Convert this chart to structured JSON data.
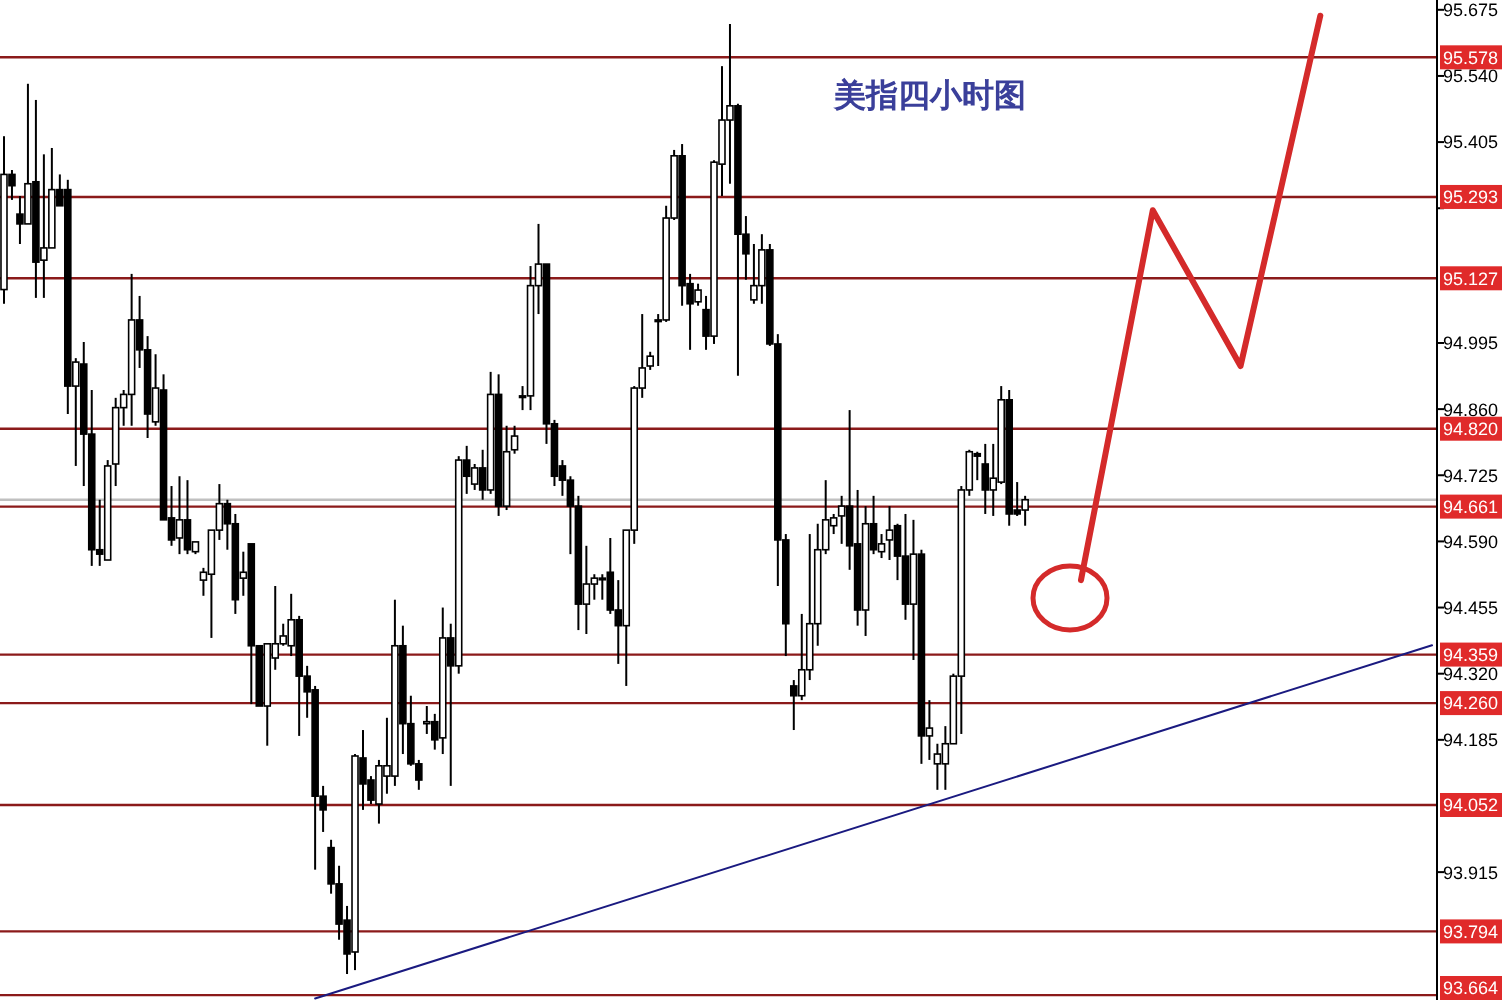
{
  "chart_data": {
    "type": "candlestick",
    "title": "美指四小时图",
    "grid": false,
    "tick_labels": "y",
    "ylim": [
      93.654,
      95.695
    ],
    "yticks": [
      {
        "value": 95.675,
        "label": "95.675"
      },
      {
        "value": 95.54,
        "label": "95.540"
      },
      {
        "value": 95.405,
        "label": "95.405"
      },
      {
        "value": 95.27,
        "label": null
      },
      {
        "value": 94.995,
        "label": "94.995"
      },
      {
        "value": 94.86,
        "label": "94.860"
      },
      {
        "value": 94.725,
        "label": "94.725"
      },
      {
        "value": 94.59,
        "label": "94.590"
      },
      {
        "value": 94.455,
        "label": "94.455"
      },
      {
        "value": 94.32,
        "label": "94.320"
      },
      {
        "value": 94.185,
        "label": "94.185"
      },
      {
        "value": 93.915,
        "label": "93.915"
      }
    ],
    "categories": [
      null,
      null,
      null,
      null,
      null,
      null,
      null,
      null,
      null,
      null,
      null,
      null,
      null,
      null,
      null,
      null,
      null,
      null,
      null,
      null,
      null,
      null,
      null,
      null,
      null,
      null,
      null,
      null,
      null,
      null,
      null,
      null,
      null,
      null,
      null,
      null,
      null,
      null,
      null,
      null,
      null,
      null,
      null,
      null,
      null,
      null,
      null,
      null,
      null,
      null,
      null,
      null,
      null,
      null,
      null,
      null,
      null,
      null,
      null,
      null,
      null,
      null,
      null,
      null,
      null,
      null,
      null,
      null,
      null,
      null,
      null,
      null,
      null,
      null,
      null,
      null,
      null,
      null,
      null,
      null,
      null,
      null,
      null,
      null,
      null,
      null,
      null,
      null,
      null,
      null,
      null,
      null,
      null,
      null,
      null,
      null,
      null,
      null,
      null,
      null,
      null,
      null,
      null,
      null,
      null,
      null,
      null,
      null,
      null,
      null,
      null,
      null,
      null,
      null,
      null,
      null,
      null,
      null,
      null,
      null,
      null,
      null,
      null,
      null,
      null,
      null,
      null,
      null,
      null,
      null,
      null,
      null,
      null,
      null,
      null,
      null,
      null,
      null,
      null,
      null,
      null,
      null,
      null,
      null,
      null,
      null,
      null,
      null,
      null,
      null,
      null,
      null,
      null,
      null,
      null,
      null,
      null,
      null,
      null,
      null,
      null,
      null,
      null,
      null,
      null,
      null,
      null,
      null,
      null,
      null,
      null,
      null,
      null,
      null,
      null,
      null,
      null,
      null,
      null,
      null
    ],
    "ohlc": [
      [
        95.104,
        95.417,
        95.075,
        95.339
      ],
      [
        95.339,
        95.348,
        95.287,
        95.316
      ],
      [
        95.258,
        95.295,
        95.197,
        95.238
      ],
      [
        95.238,
        95.524,
        95.238,
        95.32
      ],
      [
        95.324,
        95.491,
        95.087,
        95.16
      ],
      [
        95.164,
        95.38,
        95.087,
        95.189
      ],
      [
        95.189,
        95.393,
        95.189,
        95.308
      ],
      [
        95.308,
        95.339,
        95.275,
        95.275
      ],
      [
        95.308,
        95.328,
        94.85,
        94.907
      ],
      [
        94.907,
        94.964,
        94.744,
        94.956
      ],
      [
        94.952,
        94.997,
        94.703,
        94.809
      ],
      [
        94.809,
        94.899,
        94.54,
        94.573
      ],
      [
        94.573,
        94.675,
        94.54,
        94.564
      ],
      [
        94.552,
        94.756,
        94.552,
        94.744
      ],
      [
        94.748,
        94.883,
        94.703,
        94.863
      ],
      [
        94.863,
        94.899,
        94.826,
        94.89
      ],
      [
        94.89,
        95.136,
        94.826,
        95.042
      ],
      [
        95.042,
        95.091,
        94.944,
        94.981
      ],
      [
        94.981,
        95.009,
        94.801,
        94.85
      ],
      [
        94.834,
        94.972,
        94.826,
        94.903
      ],
      [
        94.899,
        94.931,
        94.634,
        94.634
      ],
      [
        94.638,
        94.703,
        94.581,
        94.593
      ],
      [
        94.597,
        94.723,
        94.564,
        94.634
      ],
      [
        94.634,
        94.715,
        94.564,
        94.573
      ],
      [
        94.569,
        94.589,
        94.564,
        94.589
      ],
      [
        94.511,
        94.536,
        94.479,
        94.527
      ],
      [
        94.523,
        94.613,
        94.393,
        94.613
      ],
      [
        94.613,
        94.707,
        94.593,
        94.667
      ],
      [
        94.667,
        94.675,
        94.573,
        94.626
      ],
      [
        94.626,
        94.646,
        94.442,
        94.471
      ],
      [
        94.515,
        94.569,
        94.479,
        94.527
      ],
      [
        94.585,
        94.585,
        94.258,
        94.377
      ],
      [
        94.377,
        94.377,
        94.254,
        94.254
      ],
      [
        94.254,
        94.381,
        94.173,
        94.381
      ],
      [
        94.352,
        94.499,
        94.328,
        94.381
      ],
      [
        94.381,
        94.422,
        94.377,
        94.397
      ],
      [
        94.377,
        94.483,
        94.356,
        94.43
      ],
      [
        94.43,
        94.438,
        94.193,
        94.315
      ],
      [
        94.315,
        94.336,
        94.23,
        94.283
      ],
      [
        94.287,
        94.295,
        93.92,
        94.07
      ],
      [
        94.07,
        94.091,
        93.997,
        94.042
      ],
      [
        93.965,
        93.981,
        93.871,
        93.891
      ],
      [
        93.891,
        93.928,
        93.777,
        93.809
      ],
      [
        93.817,
        93.846,
        93.707,
        93.748
      ],
      [
        93.752,
        94.156,
        93.715,
        94.152
      ],
      [
        94.148,
        94.205,
        94.042,
        94.095
      ],
      [
        94.103,
        94.111,
        94.054,
        94.062
      ],
      [
        94.054,
        94.144,
        94.014,
        94.132
      ],
      [
        94.111,
        94.23,
        94.075,
        94.132
      ],
      [
        94.111,
        94.471,
        94.091,
        94.377
      ],
      [
        94.377,
        94.418,
        94.156,
        94.218
      ],
      [
        94.218,
        94.275,
        94.132,
        94.136
      ],
      [
        94.136,
        94.144,
        94.083,
        94.103
      ],
      [
        94.218,
        94.254,
        94.197,
        94.222
      ],
      [
        94.222,
        94.238,
        94.165,
        94.185
      ],
      [
        94.189,
        94.455,
        94.156,
        94.393
      ],
      [
        94.393,
        94.422,
        94.091,
        94.336
      ],
      [
        94.336,
        94.764,
        94.32,
        94.756
      ],
      [
        94.756,
        94.785,
        94.687,
        94.723
      ],
      [
        94.707,
        94.748,
        94.695,
        94.74
      ],
      [
        94.74,
        94.777,
        94.675,
        94.695
      ],
      [
        94.695,
        94.936,
        94.687,
        94.89
      ],
      [
        94.89,
        94.931,
        94.642,
        94.662
      ],
      [
        94.662,
        94.826,
        94.654,
        94.773
      ],
      [
        94.777,
        94.826,
        94.769,
        94.805
      ],
      [
        94.887,
        94.907,
        94.858,
        94.887
      ],
      [
        94.887,
        95.152,
        94.858,
        95.112
      ],
      [
        95.112,
        95.238,
        95.054,
        95.156
      ],
      [
        95.156,
        95.156,
        94.789,
        94.83
      ],
      [
        94.83,
        94.838,
        94.703,
        94.723
      ],
      [
        94.744,
        94.756,
        94.683,
        94.715
      ],
      [
        94.715,
        94.723,
        94.564,
        94.662
      ],
      [
        94.662,
        94.683,
        94.409,
        94.462
      ],
      [
        94.462,
        94.581,
        94.401,
        94.503
      ],
      [
        94.503,
        94.523,
        94.471,
        94.515
      ],
      [
        94.515,
        94.523,
        94.471,
        94.515
      ],
      [
        94.527,
        94.597,
        94.442,
        94.45
      ],
      [
        94.45,
        94.511,
        94.34,
        94.418
      ],
      [
        94.418,
        94.613,
        94.295,
        94.613
      ],
      [
        94.613,
        94.907,
        94.585,
        94.903
      ],
      [
        94.903,
        95.054,
        94.883,
        94.944
      ],
      [
        94.948,
        94.977,
        94.94,
        94.968
      ],
      [
        95.042,
        95.054,
        94.948,
        95.042
      ],
      [
        95.042,
        95.275,
        95.038,
        95.25
      ],
      [
        95.25,
        95.389,
        95.246,
        95.377
      ],
      [
        95.377,
        95.401,
        95.071,
        95.112
      ],
      [
        95.116,
        95.136,
        94.981,
        95.075
      ],
      [
        95.079,
        95.116,
        95.071,
        95.103
      ],
      [
        95.063,
        95.091,
        94.981,
        95.009
      ],
      [
        95.009,
        95.368,
        94.993,
        95.364
      ],
      [
        95.36,
        95.56,
        95.295,
        95.45
      ],
      [
        95.45,
        95.646,
        95.32,
        95.479
      ],
      [
        95.479,
        95.483,
        94.928,
        95.217
      ],
      [
        95.217,
        95.254,
        95.124,
        95.177
      ],
      [
        95.083,
        95.197,
        95.075,
        95.112
      ],
      [
        95.112,
        95.217,
        95.075,
        95.185
      ],
      [
        95.185,
        95.197,
        94.989,
        94.993
      ],
      [
        94.993,
        95.013,
        94.499,
        94.593
      ],
      [
        94.593,
        94.605,
        94.356,
        94.422
      ],
      [
        94.295,
        94.307,
        94.205,
        94.275
      ],
      [
        94.275,
        94.442,
        94.266,
        94.328
      ],
      [
        94.328,
        94.605,
        94.307,
        94.422
      ],
      [
        94.422,
        94.626,
        94.377,
        94.573
      ],
      [
        94.573,
        94.715,
        94.564,
        94.634
      ],
      [
        94.622,
        94.646,
        94.605,
        94.638
      ],
      [
        94.642,
        94.683,
        94.585,
        94.662
      ],
      [
        94.662,
        94.858,
        94.532,
        94.581
      ],
      [
        94.585,
        94.695,
        94.418,
        94.45
      ],
      [
        94.45,
        94.662,
        94.397,
        94.626
      ],
      [
        94.626,
        94.683,
        94.564,
        94.573
      ],
      [
        94.569,
        94.605,
        94.556,
        94.585
      ],
      [
        94.593,
        94.662,
        94.552,
        94.613
      ],
      [
        94.622,
        94.626,
        94.511,
        94.56
      ],
      [
        94.56,
        94.646,
        94.43,
        94.462
      ],
      [
        94.462,
        94.634,
        94.348,
        94.564
      ],
      [
        94.564,
        94.573,
        94.136,
        94.193
      ],
      [
        94.193,
        94.266,
        94.144,
        94.209
      ],
      [
        94.136,
        94.177,
        94.083,
        94.156
      ],
      [
        94.136,
        94.213,
        94.083,
        94.177
      ],
      [
        94.177,
        94.32,
        94.177,
        94.315
      ],
      [
        94.315,
        94.703,
        94.197,
        94.695
      ],
      [
        94.695,
        94.777,
        94.683,
        94.773
      ],
      [
        94.769,
        94.773,
        94.715,
        94.764
      ],
      [
        94.748,
        94.789,
        94.646,
        94.695
      ],
      [
        94.695,
        94.789,
        94.642,
        94.719
      ],
      [
        94.711,
        94.907,
        94.707,
        94.879
      ],
      [
        94.879,
        94.899,
        94.622,
        94.646
      ],
      [
        94.654,
        94.711,
        94.642,
        94.646
      ],
      [
        94.654,
        94.683,
        94.622,
        94.675
      ],
      null,
      null,
      null,
      null,
      null,
      null,
      null,
      null,
      null,
      null,
      null,
      null,
      null,
      null,
      null,
      null,
      null,
      null,
      null,
      null,
      null,
      null,
      null,
      null,
      null,
      null,
      null,
      null,
      null,
      null,
      null,
      null,
      null,
      null,
      null,
      null,
      null,
      null,
      null,
      null,
      null,
      null,
      null,
      null,
      null,
      null,
      null,
      null,
      null,
      null,
      null
    ],
    "series": [
      {
        "type": "line",
        "color": "#1a1a80",
        "values": [
          null,
          null,
          null,
          null,
          null,
          null,
          null,
          null,
          null,
          null,
          null,
          null,
          null,
          null,
          null,
          null,
          null,
          null,
          null,
          null,
          null,
          null,
          null,
          null,
          null,
          null,
          null,
          null,
          null,
          null,
          null,
          null,
          null,
          null,
          null,
          null,
          null,
          null,
          null,
          93.657,
          null,
          null,
          null,
          null,
          null,
          null,
          null,
          null,
          null,
          null,
          null,
          null,
          null,
          null,
          null,
          null,
          null,
          null,
          null,
          null,
          null,
          null,
          null,
          null,
          null,
          null,
          null,
          null,
          null,
          null,
          null,
          null,
          null,
          null,
          null,
          null,
          null,
          null,
          null,
          null,
          null,
          null,
          null,
          null,
          null,
          null,
          null,
          null,
          null,
          null,
          null,
          null,
          null,
          null,
          null,
          null,
          null,
          null,
          null,
          null,
          null,
          null,
          null,
          null,
          null,
          null,
          null,
          null,
          null,
          null,
          null,
          null,
          null,
          null,
          null,
          null,
          null,
          null,
          null,
          null,
          null,
          null,
          null,
          null,
          null,
          null,
          null,
          null,
          null,
          null,
          null,
          null,
          null,
          null,
          null,
          null,
          null,
          null,
          null,
          null,
          null,
          null,
          null,
          null,
          null,
          null,
          null,
          null,
          null,
          null,
          null,
          null,
          null,
          null,
          null,
          null,
          null,
          null,
          null,
          null,
          null,
          null,
          null,
          null,
          null,
          null,
          null,
          null,
          null,
          null,
          null,
          null,
          null,
          null,
          null,
          null,
          null,
          null,
          null,
          94.378
        ]
      },
      {
        "type": "line",
        "color": "#d42a2a",
        "values": [
          null,
          null,
          null,
          null,
          null,
          null,
          null,
          null,
          null,
          null,
          null,
          null,
          null,
          null,
          null,
          null,
          null,
          null,
          null,
          null,
          null,
          null,
          null,
          null,
          null,
          null,
          null,
          null,
          null,
          null,
          null,
          null,
          null,
          null,
          null,
          null,
          null,
          null,
          null,
          null,
          null,
          null,
          null,
          null,
          null,
          null,
          null,
          null,
          null,
          null,
          null,
          null,
          null,
          null,
          null,
          null,
          null,
          null,
          null,
          null,
          null,
          null,
          null,
          null,
          null,
          null,
          null,
          null,
          null,
          null,
          null,
          null,
          null,
          null,
          null,
          null,
          null,
          null,
          null,
          null,
          null,
          null,
          null,
          null,
          null,
          null,
          null,
          null,
          null,
          null,
          null,
          null,
          null,
          null,
          null,
          null,
          null,
          null,
          null,
          null,
          null,
          null,
          null,
          null,
          null,
          null,
          null,
          null,
          null,
          null,
          null,
          null,
          null,
          null,
          null,
          null,
          null,
          null,
          null,
          null,
          null,
          null,
          null,
          null,
          null,
          null,
          null,
          null,
          null,
          null,
          null,
          null,
          null,
          null,
          null,
          94.511,
          null,
          null,
          null,
          null,
          null,
          null,
          null,
          null,
          95.266,
          null,
          null,
          null,
          null,
          null,
          null,
          null,
          null,
          null,
          null,
          94.948,
          null,
          null,
          null,
          null,
          null,
          null,
          null,
          null,
          null,
          95.663,
          null,
          null,
          null,
          null,
          null,
          null,
          null,
          null,
          null,
          null,
          null,
          null,
          null,
          null
        ]
      }
    ],
    "ref_lines": [
      {
        "axis": "y",
        "value": 94.675,
        "label": null,
        "color": "#c0c0c0"
      },
      {
        "axis": "y",
        "value": 95.578,
        "label": "95.578",
        "color": "#8b1a1a"
      },
      {
        "axis": "y",
        "value": 95.293,
        "label": "95.293",
        "color": "#8b1a1a"
      },
      {
        "axis": "y",
        "value": 95.127,
        "label": "95.127",
        "color": "#8b1a1a"
      },
      {
        "axis": "y",
        "value": 94.82,
        "label": "94.820",
        "color": "#8b1a1a"
      },
      {
        "axis": "y",
        "value": 94.661,
        "label": "94.661",
        "color": "#8b1a1a"
      },
      {
        "axis": "y",
        "value": 94.359,
        "label": "94.359",
        "color": "#8b1a1a"
      },
      {
        "axis": "y",
        "value": 94.26,
        "label": "94.260",
        "color": "#8b1a1a"
      },
      {
        "axis": "y",
        "value": 94.052,
        "label": "94.052",
        "color": "#8b1a1a"
      },
      {
        "axis": "y",
        "value": 93.794,
        "label": "93.794",
        "color": "#8b1a1a"
      },
      {
        "axis": "y",
        "value": 93.664,
        "label": "93.664",
        "color": "#8b1a1a"
      }
    ]
  }
}
